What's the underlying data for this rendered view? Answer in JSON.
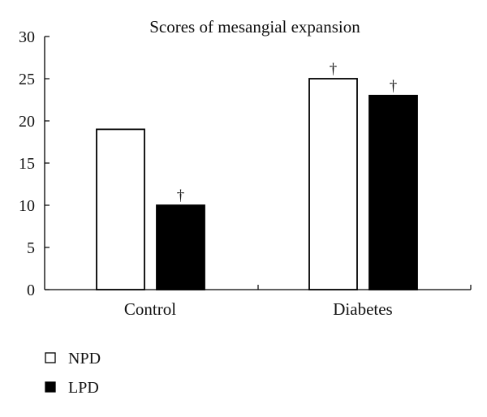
{
  "chart_data": {
    "type": "bar",
    "title": "Scores of mesangial expansion",
    "categories": [
      "Control",
      "Diabetes"
    ],
    "series": [
      {
        "name": "NPD",
        "values": [
          19,
          25
        ],
        "color": "#ffffff"
      },
      {
        "name": "LPD",
        "values": [
          10,
          23
        ],
        "color": "#000000"
      }
    ],
    "annotations": [
      {
        "series": "NPD",
        "category": "Control",
        "text": ""
      },
      {
        "series": "LPD",
        "category": "Control",
        "text": "†"
      },
      {
        "series": "NPD",
        "category": "Diabetes",
        "text": "†"
      },
      {
        "series": "LPD",
        "category": "Diabetes",
        "text": "†"
      }
    ],
    "ylim": [
      0,
      30
    ],
    "yticks": [
      0,
      5,
      10,
      15,
      20,
      25,
      30
    ],
    "xlabel": "",
    "ylabel": "",
    "grid": false,
    "legend_position": "bottom-left"
  }
}
